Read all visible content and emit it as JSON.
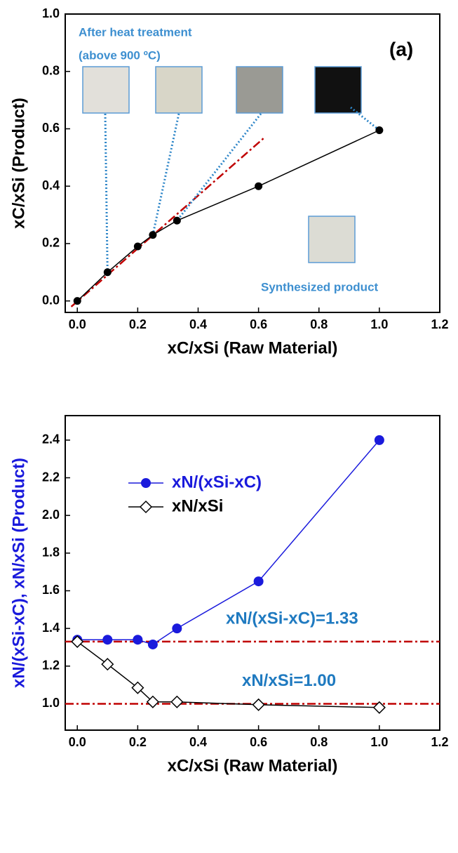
{
  "chart_data": [
    {
      "type": "line",
      "x_label": "xC/xSi (Raw Material)",
      "y_label": "xC/xSi (Product)",
      "x": [
        0,
        0.1,
        0.2,
        0.25,
        0.33,
        0.6,
        1.0
      ],
      "series": [
        {
          "color": "#000000",
          "marker": "circle",
          "values": [
            0,
            0.1,
            0.19,
            0.23,
            0.28,
            0.4,
            0.595
          ]
        }
      ],
      "reference_line": {
        "x": [
          -0.02,
          0.62
        ],
        "y": [
          -0.02,
          0.57
        ],
        "color": "#c00000"
      },
      "annotations": [
        "After heat treatment",
        "(above 900 ºC)",
        "(a)",
        "Synthesized product"
      ],
      "xlim": [
        -0.04,
        1.2
      ],
      "ylim": [
        -0.04,
        1.0
      ],
      "xticks": [
        {
          "value": 0,
          "label": "0.0"
        },
        0.2,
        0.4,
        0.6,
        0.8,
        {
          "value": 1,
          "label": "1.0"
        },
        1.2
      ],
      "yticks": [
        {
          "value": 0,
          "label": "0.0"
        },
        0.2,
        0.4,
        0.6,
        0.8,
        {
          "value": 1,
          "label": "1.0"
        }
      ]
    },
    {
      "type": "line",
      "x_label": "xC/xSi (Raw Material)",
      "y_label": "xN/(xSi-xC), xN/xSi (Product)",
      "x": [
        0,
        0.1,
        0.2,
        0.25,
        0.33,
        0.6,
        1.0
      ],
      "series": [
        {
          "name": "xN/(xSi-xC)",
          "color": "#1a1adc",
          "marker": "circle",
          "values": [
            1.34,
            1.34,
            1.34,
            1.315,
            1.4,
            1.65,
            2.4
          ]
        },
        {
          "name": "xN/xSi",
          "color": "#000000",
          "marker": "diamond",
          "values": [
            1.33,
            1.21,
            1.085,
            1.01,
            1.01,
            0.995,
            0.98
          ]
        }
      ],
      "hlines": [
        {
          "value": 1.33,
          "label": "xN/(xSi-xC)=1.33",
          "color": "#c00000"
        },
        {
          "value": 1.0,
          "label": "xN/xSi=1.00",
          "color": "#c00000"
        }
      ],
      "xlim": [
        -0.04,
        1.2
      ],
      "ylim": [
        0.86,
        2.53
      ],
      "xticks": [
        {
          "value": 0,
          "label": "0.0"
        },
        0.2,
        0.4,
        0.6,
        0.8,
        {
          "value": 1,
          "label": "1.0"
        },
        1.2
      ],
      "yticks": [
        {
          "value": 1,
          "label": "1.0"
        },
        1.2,
        1.4,
        1.6,
        1.8,
        {
          "value": 2,
          "label": "2.0"
        },
        2.2,
        2.4
      ]
    }
  ]
}
